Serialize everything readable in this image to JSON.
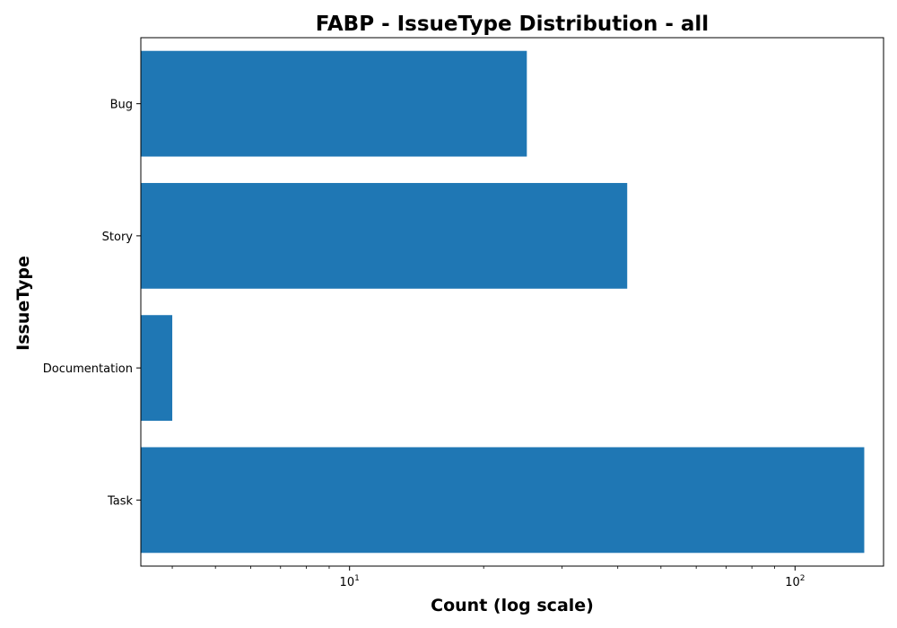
{
  "chart_data": {
    "type": "bar",
    "orientation": "horizontal",
    "title": "FABP - IssueType Distribution - all",
    "xlabel": "Count (log scale)",
    "ylabel": "IssueType",
    "x_scale": "log",
    "xlim": [
      3.4,
      158
    ],
    "x_major_ticks": [
      {
        "value": 10,
        "base": "10",
        "exp": "1"
      },
      {
        "value": 100,
        "base": "10",
        "exp": "2"
      }
    ],
    "categories": [
      "Bug",
      "Story",
      "Documentation",
      "Task"
    ],
    "values": [
      25,
      42,
      4,
      143
    ],
    "bar_color": "#1f77b4",
    "grid": false,
    "legend": "none"
  }
}
